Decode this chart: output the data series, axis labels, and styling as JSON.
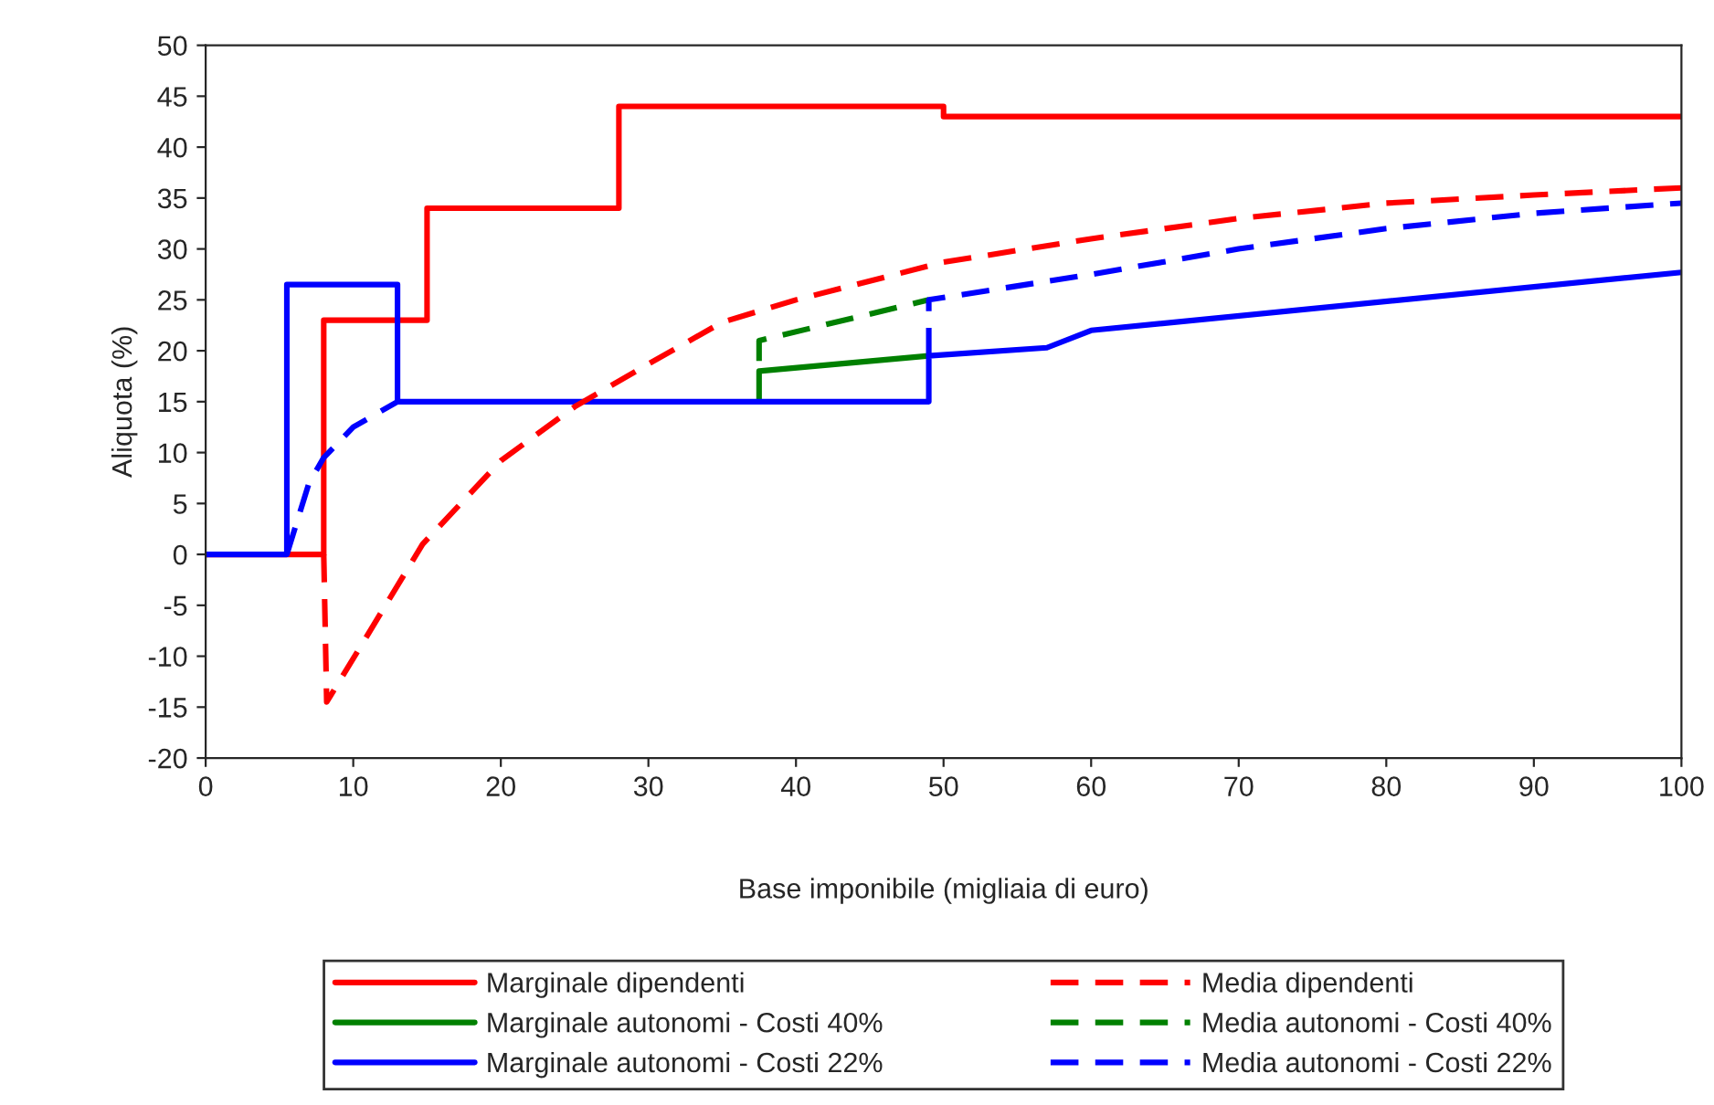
{
  "chart_data": {
    "type": "line",
    "xlabel": "Base imponibile (migliaia di euro)",
    "ylabel": "Aliquota (%)",
    "xlim": [
      0,
      100
    ],
    "xticks": [
      0,
      10,
      20,
      30,
      40,
      50,
      60,
      70,
      80,
      90,
      100
    ],
    "ylim": [
      -20,
      50
    ],
    "yticks": [
      -20,
      -15,
      -10,
      -5,
      0,
      5,
      10,
      15,
      20,
      25,
      30,
      35,
      40,
      45,
      50
    ],
    "grid": false,
    "legend": "bottom",
    "marker": "none",
    "series": [
      {
        "name": "Marginale dipendenti",
        "color": "#ff0000",
        "line_style": "solid",
        "x": [
          0,
          8,
          8,
          15,
          15,
          28,
          28,
          50,
          50,
          100
        ],
        "values": [
          0,
          0,
          23,
          23,
          34,
          34,
          44,
          44,
          43,
          43
        ]
      },
      {
        "name": "Marginale autonomi - Costi 40%",
        "color": "#008000",
        "line_style": "solid",
        "x": [
          37.5,
          37.5,
          49
        ],
        "values": [
          15,
          18,
          19.5
        ]
      },
      {
        "name": "Marginale autonomi - Costi 22%",
        "color": "#0000ff",
        "line_style": "solid",
        "x": [
          0,
          5.5,
          5.5,
          13,
          13,
          49,
          49,
          57,
          60,
          100
        ],
        "values": [
          0,
          0,
          26.5,
          26.5,
          15,
          15,
          19.5,
          20.3,
          22,
          27.7
        ]
      },
      {
        "name": "Media dipendenti",
        "color": "#ff0000",
        "line_style": "dashed",
        "x": [
          8,
          8.2,
          10.6,
          14.7,
          20,
          25,
          30,
          35,
          40,
          50,
          60,
          70,
          80,
          90,
          100
        ],
        "values": [
          0,
          -14.5,
          -8.8,
          1,
          9.2,
          14.5,
          18.7,
          22.8,
          25,
          28.7,
          31,
          33,
          34.5,
          35.3,
          36
        ]
      },
      {
        "name": "Media autonomi - Costi 40%",
        "color": "#008000",
        "line_style": "dashed",
        "x": [
          37.5,
          37.5,
          49
        ],
        "values": [
          19,
          21,
          25
        ]
      },
      {
        "name": "Media autonomi - Costi 22%",
        "color": "#0000ff",
        "line_style": "dashed",
        "x": [
          49,
          49,
          60,
          70,
          80,
          90,
          100
        ],
        "values": [
          19.5,
          25,
          27.5,
          30,
          32,
          33.5,
          34.5
        ]
      },
      {
        "color": "#0000ff",
        "line_style": "dashed",
        "x": [
          5.5,
          7,
          8,
          10,
          13
        ],
        "values": [
          0,
          7,
          9.5,
          12.5,
          15
        ]
      }
    ]
  }
}
